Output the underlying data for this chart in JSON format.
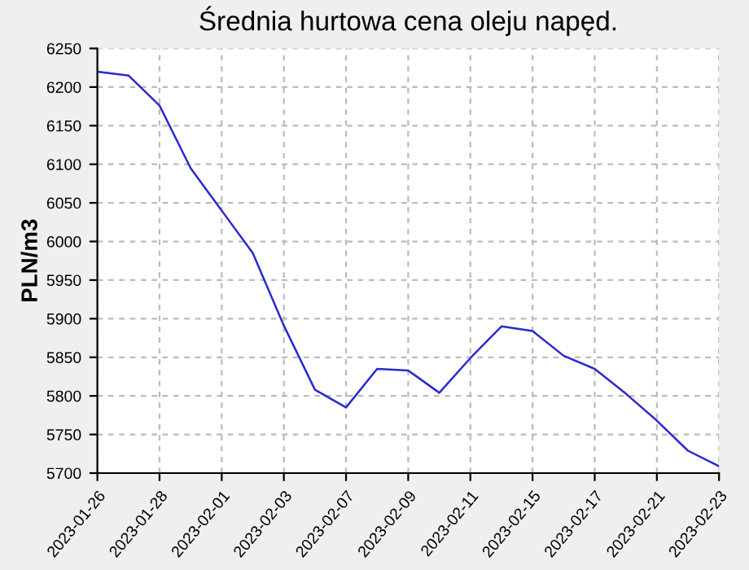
{
  "chart_data": {
    "type": "line",
    "title": "Średnia hurtowa cena oleju napęd.",
    "ylabel": "PLN/m3",
    "categories": [
      "2023-01-26",
      null,
      "2023-01-28",
      null,
      "2023-02-01",
      null,
      "2023-02-03",
      null,
      "2023-02-07",
      null,
      "2023-02-09",
      null,
      "2023-02-11",
      null,
      "2023-02-15",
      null,
      "2023-02-17",
      null,
      "2023-02-21",
      null,
      "2023-02-23"
    ],
    "series": [
      {
        "color": "#2a2ad0",
        "values": [
          6220,
          6215,
          6176,
          6095,
          6040,
          5985,
          5891,
          5808,
          5785,
          5835,
          5833,
          5804,
          5849,
          5890,
          5884,
          5852,
          5835,
          5803,
          5768,
          5729,
          5709
        ]
      }
    ],
    "ylim": [
      5700,
      6250
    ],
    "yticks": [
      5700,
      5750,
      5800,
      5850,
      5900,
      5950,
      6000,
      6050,
      6100,
      6150,
      6200,
      6250
    ],
    "grid": true,
    "marker": "none",
    "line_style": "solid"
  }
}
